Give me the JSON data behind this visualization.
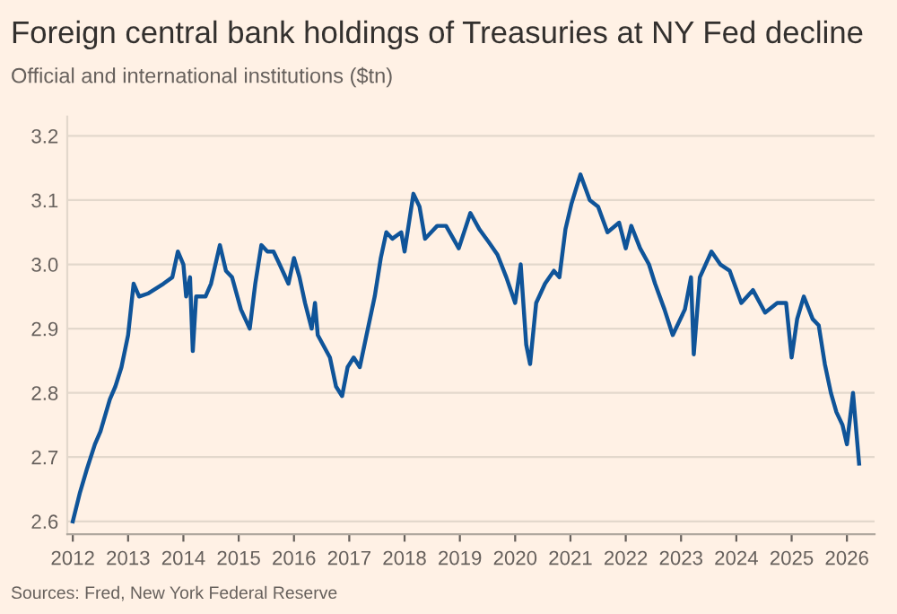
{
  "chart_data": {
    "type": "line",
    "title": "Foreign central bank holdings of Treasuries at NY Fed decline",
    "subtitle": "Official and international institutions ($tn)",
    "annotations": [
      "Sources: Fred, New York Federal Reserve"
    ],
    "x": [
      2012.0,
      2012.13,
      2012.25,
      2012.4,
      2012.5,
      2012.67,
      2012.77,
      2012.88,
      2013.0,
      2013.1,
      2013.2,
      2013.37,
      2013.64,
      2013.8,
      2013.9,
      2014.0,
      2014.05,
      2014.12,
      2014.17,
      2014.23,
      2014.4,
      2014.5,
      2014.66,
      2014.77,
      2014.88,
      2015.04,
      2015.2,
      2015.3,
      2015.41,
      2015.52,
      2015.63,
      2015.74,
      2015.9,
      2016.0,
      2016.1,
      2016.2,
      2016.32,
      2016.38,
      2016.43,
      2016.65,
      2016.76,
      2016.87,
      2016.97,
      2017.08,
      2017.19,
      2017.3,
      2017.46,
      2017.57,
      2017.67,
      2017.78,
      2017.94,
      2018.0,
      2018.16,
      2018.27,
      2018.37,
      2018.59,
      2018.75,
      2018.98,
      2019.19,
      2019.35,
      2019.52,
      2019.68,
      2019.84,
      2020.0,
      2020.1,
      2020.2,
      2020.27,
      2020.38,
      2020.54,
      2020.7,
      2020.8,
      2020.91,
      2021.02,
      2021.18,
      2021.35,
      2021.5,
      2021.67,
      2021.88,
      2022.0,
      2022.1,
      2022.26,
      2022.42,
      2022.53,
      2022.7,
      2022.85,
      2023.07,
      2023.18,
      2023.23,
      2023.34,
      2023.55,
      2023.71,
      2023.88,
      2024.09,
      2024.3,
      2024.52,
      2024.74,
      2024.9,
      2025.0,
      2025.1,
      2025.22,
      2025.38,
      2025.49,
      2025.6,
      2025.71,
      2025.81,
      2025.92,
      2026.0,
      2026.11,
      2026.22
    ],
    "series": [
      {
        "color": "#0f5499",
        "values": [
          2.6,
          2.645,
          2.68,
          2.72,
          2.74,
          2.79,
          2.81,
          2.84,
          2.89,
          2.97,
          2.95,
          2.955,
          2.97,
          2.98,
          3.02,
          3.0,
          2.95,
          2.98,
          2.865,
          2.95,
          2.95,
          2.97,
          3.03,
          2.99,
          2.98,
          2.93,
          2.9,
          2.97,
          3.03,
          3.02,
          3.02,
          3.0,
          2.97,
          3.01,
          2.98,
          2.94,
          2.9,
          2.94,
          2.89,
          2.855,
          2.81,
          2.795,
          2.84,
          2.855,
          2.84,
          2.885,
          2.95,
          3.01,
          3.05,
          3.04,
          3.05,
          3.02,
          3.11,
          3.09,
          3.04,
          3.06,
          3.06,
          3.025,
          3.08,
          3.055,
          3.035,
          3.015,
          2.98,
          2.94,
          3.0,
          2.875,
          2.845,
          2.94,
          2.97,
          2.99,
          2.98,
          3.055,
          3.095,
          3.14,
          3.1,
          3.09,
          3.05,
          3.065,
          3.025,
          3.06,
          3.025,
          3.0,
          2.97,
          2.93,
          2.89,
          2.93,
          2.98,
          2.86,
          2.98,
          3.02,
          3.0,
          2.99,
          2.94,
          2.96,
          2.925,
          2.94,
          2.94,
          2.855,
          2.915,
          2.95,
          2.915,
          2.905,
          2.845,
          2.8,
          2.77,
          2.75,
          2.72,
          2.8,
          2.69
        ]
      }
    ],
    "xlim": [
      2011.9,
      2026.5
    ],
    "xticks": [
      2012,
      2013,
      2014,
      2015,
      2016,
      2017,
      2018,
      2019,
      2020,
      2021,
      2022,
      2023,
      2024,
      2025,
      2026
    ],
    "ylim": [
      2.58,
      3.23
    ],
    "yticks": [
      2.6,
      2.7,
      2.8,
      2.9,
      {
        "value": 3.0,
        "label": "3.0"
      },
      3.1,
      3.2
    ],
    "grid": "y"
  }
}
